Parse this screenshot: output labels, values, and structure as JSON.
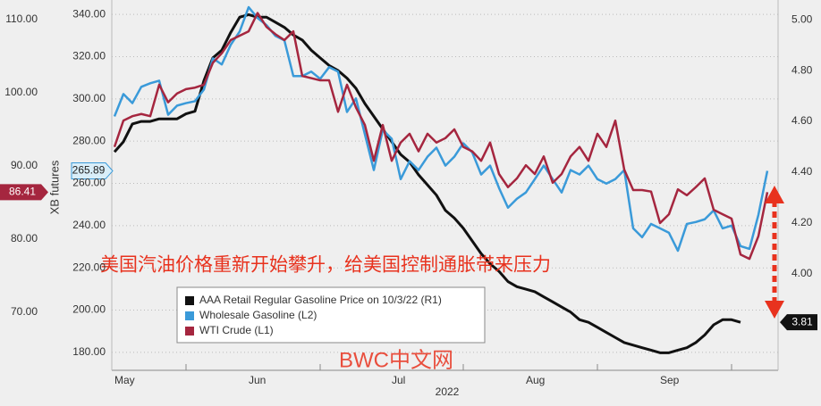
{
  "chart_data": {
    "type": "line",
    "annotation": "美国汽油价格重新开始攀升，给美国控制通胀带来压力",
    "watermark": "BWC中文网",
    "y_label": "XB futures",
    "x_label": "2022",
    "categories": [
      "May",
      null,
      null,
      null,
      null,
      null,
      null,
      null,
      null,
      null,
      null,
      null,
      null,
      null,
      null,
      "Jun",
      null,
      null,
      null,
      null,
      null,
      null,
      null,
      null,
      null,
      null,
      null,
      null,
      null,
      null,
      null,
      "Jul",
      null,
      null,
      null,
      null,
      null,
      null,
      null,
      null,
      null,
      null,
      null,
      null,
      null,
      null,
      "Aug",
      null,
      null,
      null,
      null,
      null,
      null,
      null,
      null,
      null,
      null,
      null,
      null,
      null,
      null,
      "Sep",
      null,
      null,
      null,
      null,
      null,
      null,
      null,
      null,
      null,
      null,
      null,
      null
    ],
    "ylim": [
      171.5,
      344.7
    ],
    "yticks": [
      {
        "value": 180,
        "label": "180.00"
      },
      {
        "value": 200,
        "label": "200.00"
      },
      {
        "value": 220,
        "label": "220.00"
      },
      {
        "value": 240,
        "label": "240.00"
      },
      {
        "value": 260,
        "label": "260.00"
      },
      {
        "value": 280,
        "label": "280.00"
      },
      {
        "value": 300,
        "label": "300.00"
      },
      {
        "value": 320,
        "label": "320.00"
      },
      {
        "value": 340,
        "label": "340.00"
      }
    ],
    "y2lim": [
      3.621,
      5.06
    ],
    "y2ticks": [
      {
        "value": 4,
        "label": "4.00"
      },
      {
        "value": 4.2,
        "label": "4.20"
      },
      {
        "value": 4.4,
        "label": "4.40"
      },
      {
        "value": 4.6,
        "label": "4.60"
      },
      {
        "value": 4.8,
        "label": "4.80"
      },
      {
        "value": 5,
        "label": "5.00"
      }
    ],
    "y3lim": [
      62.07,
      112.07
    ],
    "y3ticks": [
      {
        "value": 70,
        "label": "70.00"
      },
      {
        "value": 80,
        "label": "80.00"
      },
      {
        "value": 90,
        "label": "90.00"
      },
      {
        "value": 100,
        "label": "100.00"
      },
      {
        "value": 110,
        "label": "110.00"
      }
    ],
    "grid": true,
    "series": [
      {
        "name": "AAA Retail Regular Gasoline Price on 10/3/22 (R1)",
        "color": "#111111",
        "axis": "y2",
        "last_label": "3.81",
        "values": [
          4.48,
          4.52,
          4.59,
          4.6,
          4.6,
          4.61,
          4.61,
          4.61,
          4.63,
          4.64,
          4.76,
          4.85,
          4.88,
          4.95,
          5.01,
          5.02,
          5.01,
          5.01,
          4.99,
          4.97,
          4.94,
          4.92,
          4.88,
          4.85,
          4.82,
          4.8,
          4.77,
          4.73,
          4.67,
          4.62,
          4.57,
          4.52,
          4.47,
          4.44,
          4.39,
          4.35,
          4.31,
          4.25,
          4.22,
          4.18,
          4.13,
          4.08,
          4.04,
          4.01,
          3.97,
          3.95,
          3.94,
          3.93,
          3.91,
          3.89,
          3.87,
          3.85,
          3.82,
          3.81,
          3.79,
          3.77,
          3.75,
          3.73,
          3.72,
          3.71,
          3.7,
          3.69,
          3.69,
          3.7,
          3.71,
          3.73,
          3.76,
          3.8,
          3.82,
          3.82,
          3.81,
          null,
          null,
          null
        ]
      },
      {
        "name": "Wholesale Gasoline (L2)",
        "color": "#3a9ad9",
        "axis": "y",
        "last_label": "265.89",
        "values": [
          291.7,
          302.3,
          298.0,
          305.7,
          307.4,
          308.6,
          292.5,
          296.8,
          298.0,
          298.9,
          304.4,
          319.2,
          316.3,
          325.6,
          331.9,
          343.4,
          338.3,
          334.9,
          329.8,
          327.7,
          310.8,
          310.8,
          312.9,
          309.5,
          315.0,
          312.9,
          293.8,
          300.2,
          283.2,
          266.3,
          285.3,
          281.1,
          262.0,
          270.5,
          266.3,
          272.6,
          276.9,
          268.4,
          272.6,
          279.0,
          274.7,
          264.2,
          268.4,
          257.8,
          248.5,
          252.7,
          255.7,
          262.0,
          268.4,
          262.0,
          255.7,
          266.3,
          264.2,
          268.4,
          262.0,
          259.9,
          262.0,
          266.3,
          238.7,
          234.5,
          240.8,
          238.7,
          236.6,
          228.1,
          240.8,
          241.7,
          243.0,
          247.2,
          238.7,
          240.0,
          230.3,
          229.0,
          245.1,
          265.89
        ]
      },
      {
        "name": "WTI Crude (L1)",
        "color": "#a5263f",
        "axis": "y3",
        "last_label": "86.41",
        "values": [
          92.6,
          96.2,
          96.8,
          97.1,
          96.8,
          101.1,
          98.7,
          99.9,
          100.5,
          100.7,
          101.1,
          104.1,
          105.4,
          107.2,
          107.8,
          108.4,
          110.9,
          109.0,
          108.0,
          107.2,
          108.4,
          102.3,
          102.0,
          101.7,
          101.7,
          97.4,
          101.1,
          98.0,
          95.6,
          90.7,
          95.6,
          90.7,
          93.2,
          94.4,
          92.0,
          94.4,
          93.2,
          93.8,
          95.0,
          92.6,
          92.0,
          90.7,
          93.2,
          88.9,
          87.1,
          88.3,
          90.1,
          88.9,
          91.3,
          87.7,
          88.9,
          91.3,
          92.6,
          90.7,
          94.4,
          92.6,
          96.2,
          89.5,
          86.7,
          86.7,
          86.5,
          82.2,
          83.4,
          86.8,
          86.0,
          87.1,
          88.3,
          84.0,
          83.4,
          82.8,
          77.9,
          77.3,
          80.4,
          86.41
        ]
      }
    ]
  }
}
